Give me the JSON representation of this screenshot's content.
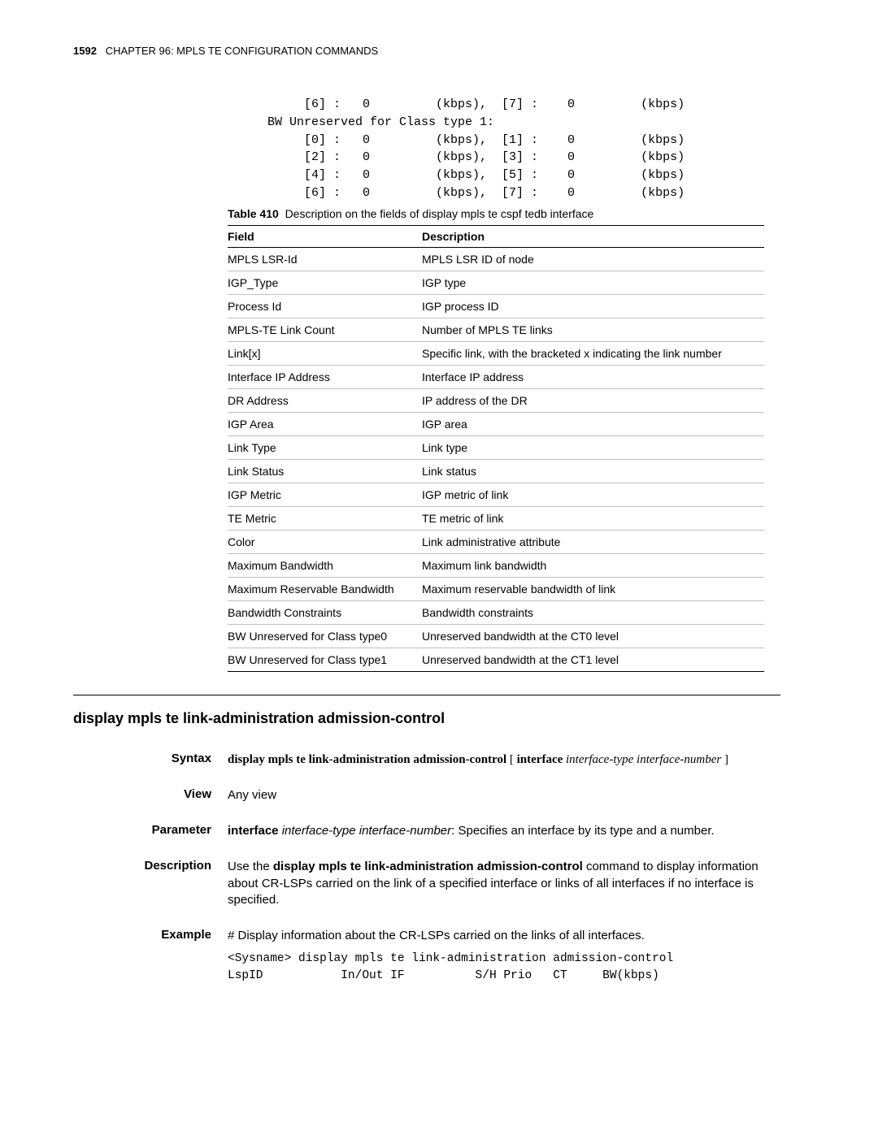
{
  "header": {
    "page_number": "1592",
    "chapter": "CHAPTER 96: MPLS TE CONFIGURATION COMMANDS"
  },
  "code_block": "      [6] :   0         (kbps),  [7] :    0         (kbps)\n BW Unreserved for Class type 1:\n      [0] :   0         (kbps),  [1] :    0         (kbps)\n      [2] :   0         (kbps),  [3] :    0         (kbps)\n      [4] :   0         (kbps),  [5] :    0         (kbps)\n      [6] :   0         (kbps),  [7] :    0         (kbps)",
  "table_caption": {
    "label": "Table 410",
    "text": "Description on the fields of display mpls te cspf tedb interface"
  },
  "desc_table": {
    "columns": [
      "Field",
      "Description"
    ],
    "rows": [
      [
        "MPLS LSR-Id",
        "MPLS LSR ID of node"
      ],
      [
        "IGP_Type",
        "IGP type"
      ],
      [
        "Process Id",
        "IGP process ID"
      ],
      [
        "MPLS-TE Link Count",
        "Number of MPLS TE links"
      ],
      [
        "Link[x]",
        "Specific link, with the bracketed x indicating the link number"
      ],
      [
        "Interface IP Address",
        "Interface IP address"
      ],
      [
        "DR Address",
        "IP address of the DR"
      ],
      [
        "IGP Area",
        "IGP area"
      ],
      [
        "Link Type",
        "Link type"
      ],
      [
        "Link Status",
        "Link status"
      ],
      [
        "IGP Metric",
        "IGP metric of link"
      ],
      [
        "TE Metric",
        "TE metric of link"
      ],
      [
        "Color",
        "Link administrative attribute"
      ],
      [
        "Maximum Bandwidth",
        "Maximum link bandwidth"
      ],
      [
        "Maximum Reservable Bandwidth",
        "Maximum reservable bandwidth of link"
      ],
      [
        "Bandwidth Constraints",
        "Bandwidth constraints"
      ],
      [
        "BW Unreserved for Class type0",
        "Unreserved bandwidth at the CT0 level"
      ],
      [
        "BW Unreserved for Class type1",
        "Unreserved bandwidth at the CT1 level"
      ]
    ]
  },
  "section_title": "display mpls te link-administration admission-control",
  "syntax": {
    "label": "Syntax",
    "cmd_bold1": "display mpls te link-administration admission-control",
    "bracket_open": " [ ",
    "cmd_bold2": "interface",
    "italic1": " interface-type interface-number",
    "bracket_close": " ]"
  },
  "view": {
    "label": "View",
    "text": "Any view"
  },
  "parameter": {
    "label": "Parameter",
    "bold": "interface",
    "italic": " interface-type interface-number",
    "rest": ": Specifies an interface by its type and a number."
  },
  "description": {
    "label": "Description",
    "pre": "Use the ",
    "bold": "display mpls te link-administration admission-control",
    "post": " command to display information about CR-LSPs carried on the link of a specified interface or links of all interfaces if no interface is specified."
  },
  "example": {
    "label": "Example",
    "text": "# Display information about the CR-LSPs carried on the links of all interfaces.",
    "code": "<Sysname> display mpls te link-administration admission-control\nLspID           In/Out IF          S/H Prio   CT     BW(kbps)"
  }
}
